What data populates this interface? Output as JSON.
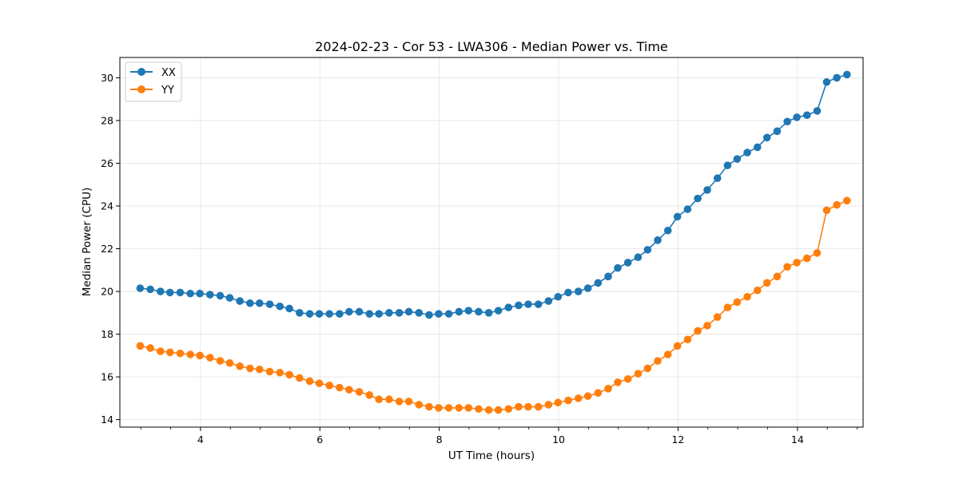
{
  "chart_data": {
    "type": "line",
    "title": "2024-02-23 - Cor 53 - LWA306 - Median Power vs. Time",
    "xlabel": "UT Time (hours)",
    "ylabel": "Median Power (CPU)",
    "xlim": [
      2.65,
      15.1
    ],
    "ylim": [
      13.65,
      30.95
    ],
    "xticks": [
      4,
      6,
      8,
      10,
      12,
      14
    ],
    "xtick_labels": [
      "4",
      "6",
      "8",
      "10",
      "12",
      "14"
    ],
    "yticks": [
      14,
      16,
      18,
      20,
      22,
      24,
      26,
      28,
      30
    ],
    "ytick_labels": [
      "14",
      "16",
      "18",
      "20",
      "22",
      "24",
      "26",
      "28",
      "30"
    ],
    "grid": true,
    "legend_position": "top-left",
    "x": [
      2.99,
      3.16,
      3.33,
      3.49,
      3.66,
      3.83,
      3.99,
      4.16,
      4.33,
      4.49,
      4.66,
      4.83,
      4.99,
      5.16,
      5.33,
      5.49,
      5.66,
      5.83,
      5.99,
      6.16,
      6.33,
      6.49,
      6.66,
      6.83,
      6.99,
      7.16,
      7.33,
      7.49,
      7.66,
      7.83,
      7.99,
      8.16,
      8.33,
      8.49,
      8.66,
      8.83,
      8.99,
      9.16,
      9.33,
      9.49,
      9.66,
      9.83,
      9.99,
      10.16,
      10.33,
      10.49,
      10.66,
      10.83,
      10.99,
      11.16,
      11.33,
      11.49,
      11.66,
      11.83,
      11.99,
      12.16,
      12.33,
      12.49,
      12.66,
      12.83,
      12.99,
      13.16,
      13.33,
      13.49,
      13.66,
      13.83,
      13.99,
      14.16,
      14.33,
      14.49,
      14.66,
      14.83
    ],
    "series": [
      {
        "name": "XX",
        "color": "#1f77b4",
        "values": [
          20.15,
          20.1,
          20.0,
          19.95,
          19.95,
          19.9,
          19.9,
          19.85,
          19.8,
          19.7,
          19.55,
          19.45,
          19.45,
          19.4,
          19.3,
          19.2,
          19.0,
          18.95,
          18.95,
          18.95,
          18.95,
          19.05,
          19.05,
          18.95,
          18.95,
          19.0,
          19.0,
          19.05,
          19.0,
          18.9,
          18.95,
          18.95,
          19.05,
          19.1,
          19.05,
          19.0,
          19.1,
          19.25,
          19.35,
          19.4,
          19.4,
          19.55,
          19.75,
          19.95,
          20.0,
          20.15,
          20.4,
          20.7,
          21.1,
          21.35,
          21.6,
          21.95,
          22.4,
          22.85,
          23.5,
          23.85,
          24.35,
          24.75,
          25.3,
          25.9,
          26.2,
          26.5,
          26.75,
          27.2,
          27.5,
          27.95,
          28.15,
          28.25,
          28.45,
          29.8,
          30.0,
          30.15
        ]
      },
      {
        "name": "YY",
        "color": "#ff7f0e",
        "values": [
          17.45,
          17.35,
          17.2,
          17.15,
          17.1,
          17.05,
          17.0,
          16.9,
          16.75,
          16.65,
          16.5,
          16.4,
          16.35,
          16.25,
          16.2,
          16.1,
          15.95,
          15.8,
          15.7,
          15.6,
          15.5,
          15.4,
          15.3,
          15.15,
          14.95,
          14.95,
          14.85,
          14.85,
          14.7,
          14.6,
          14.55,
          14.55,
          14.55,
          14.55,
          14.5,
          14.45,
          14.45,
          14.5,
          14.6,
          14.6,
          14.6,
          14.7,
          14.8,
          14.9,
          15.0,
          15.1,
          15.25,
          15.45,
          15.75,
          15.9,
          16.15,
          16.4,
          16.75,
          17.05,
          17.45,
          17.75,
          18.15,
          18.4,
          18.8,
          19.25,
          19.5,
          19.75,
          20.05,
          20.4,
          20.7,
          21.15,
          21.35,
          21.55,
          21.8,
          23.8,
          24.05,
          24.25
        ]
      }
    ]
  }
}
